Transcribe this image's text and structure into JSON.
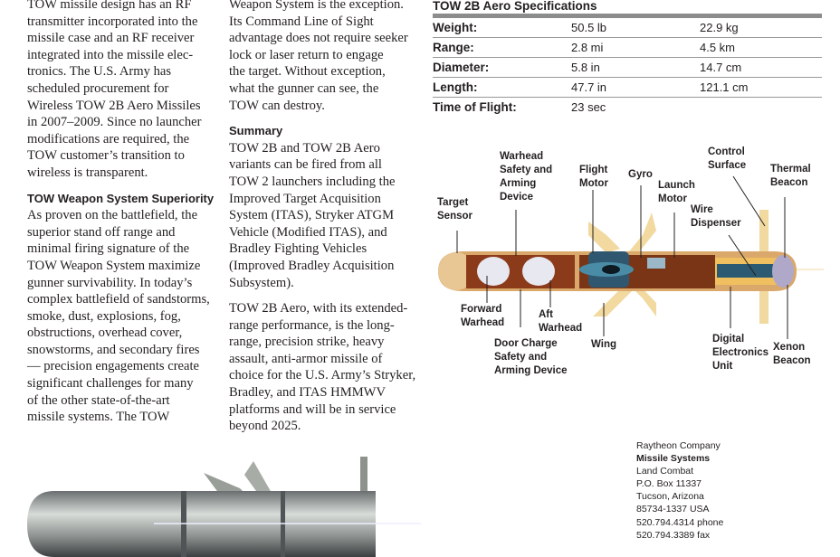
{
  "column1": {
    "para1": [
      "TOW missile design has an RF",
      "transmitter incorporated into the",
      "missile case and an RF receiver",
      "integrated into the missile elec-",
      "tronics. The U.S. Army has",
      "scheduled procurement for",
      "Wireless TOW 2B Aero Missiles",
      "in 2007–2009. Since no launcher",
      "modifications are required, the",
      "TOW customer’s transition to",
      "wireless is transparent."
    ],
    "heading": "TOW Weapon System Superiority",
    "para2": [
      "As proven on the battlefield, the",
      "superior stand off range and",
      "minimal firing signature of the",
      "TOW Weapon System maximize",
      "gunner survivability. In today’s",
      "complex battlefield of sandstorms,",
      "smoke, dust, explosions, fog,",
      "obstructions, overhead cover,",
      "snowstorms, and secondary fires",
      "— precision engagements create",
      "significant challenges for many",
      "of the other state-of-the-art",
      "missile systems. The TOW"
    ]
  },
  "column2": {
    "para1": [
      "Weapon System is the exception.",
      "Its Command Line of Sight",
      "advantage does not require seeker",
      "lock or laser return to engage",
      "the target. Without exception,",
      "what the gunner can see, the",
      "TOW can destroy."
    ],
    "heading": "Summary",
    "para2": [
      "TOW 2B and TOW 2B Aero",
      "variants can be fired from all",
      "TOW 2 launchers including the",
      "Improved Target Acquisition",
      "System (ITAS), Stryker ATGM",
      "Vehicle (Modified ITAS), and",
      "Bradley Fighting Vehicles",
      "(Improved Bradley Acquisition",
      "Subsystem)."
    ],
    "para3": [
      "TOW 2B Aero, with its extended-",
      "range performance, is the long-",
      "range, precision strike, heavy",
      "assault, anti-armor missile of",
      "choice for the U.S. Army’s Stryker,",
      "Bradley, and ITAS HMMWV",
      "platforms and will be in service",
      "beyond 2025."
    ]
  },
  "specs": {
    "title": "TOW 2B Aero Specifications",
    "rows": [
      {
        "label": "Weight:",
        "imperial": "50.5 lb",
        "metric": "22.9 kg"
      },
      {
        "label": "Range:",
        "imperial": "2.8 mi",
        "metric": "4.5 km"
      },
      {
        "label": "Diameter:",
        "imperial": "5.8 in",
        "metric": "14.7 cm"
      },
      {
        "label": "Length:",
        "imperial": "47.7 in",
        "metric": "121.1 cm"
      },
      {
        "label": "Time of Flight:",
        "imperial": "23 sec",
        "metric": ""
      }
    ]
  },
  "diagram": {
    "labels": {
      "target_sensor": [
        "Target",
        "Sensor"
      ],
      "warhead_safety": [
        "Warhead",
        "Safety and",
        "Arming",
        "Device"
      ],
      "flight_motor": [
        "Flight",
        "Motor"
      ],
      "gyro": [
        "Gyro"
      ],
      "launch_motor": [
        "Launch",
        "Motor"
      ],
      "control_surface": [
        "Control",
        "Surface"
      ],
      "thermal_beacon": [
        "Thermal",
        "Beacon"
      ],
      "wire_dispenser": [
        "Wire",
        "Dispenser"
      ],
      "forward_warhead": [
        "Forward",
        "Warhead"
      ],
      "aft_warhead": [
        "Aft",
        "Warhead"
      ],
      "door_charge": [
        "Door Charge",
        "Safety and",
        "Arming Device"
      ],
      "wing": [
        "Wing"
      ],
      "digital_electronics": [
        "Digital",
        "Electronics",
        "Unit"
      ],
      "xenon_beacon": [
        "Xenon",
        "Beacon"
      ]
    }
  },
  "contact": {
    "company": "Raytheon Company",
    "division": "Missile Systems",
    "unit": "Land Combat",
    "po_box": "P.O. Box 11337",
    "city": "Tucson, Arizona",
    "zip": "85734-1337 USA",
    "phone": "520.794.4314 phone",
    "fax": "520.794.3389 fax"
  },
  "colors": {
    "missile_body": "#d9a86a",
    "missile_interior": "#8b3a1a",
    "fins": "#f1d9a0",
    "rule": "#8c8c8c"
  }
}
